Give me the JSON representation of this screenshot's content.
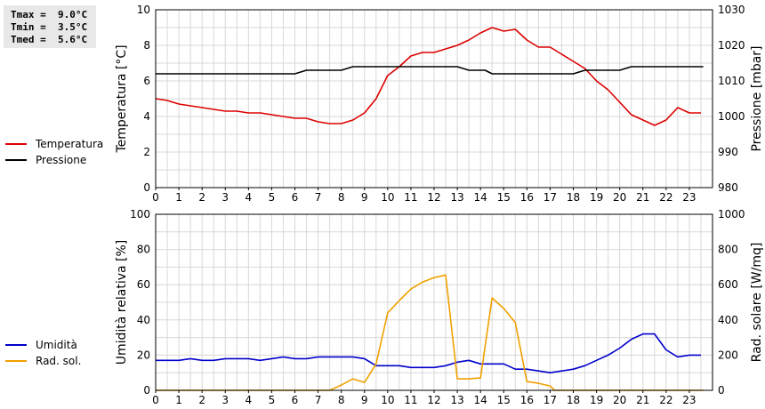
{
  "stats": {
    "tmax": "Tmax =  9.0°C",
    "tmin": "Tmin =  3.5°C",
    "tmed": "Tmed =  5.6°C"
  },
  "colors": {
    "temperature": "#dd0000",
    "pressure": "#000000",
    "humidity": "#0000cc",
    "radiation": "#f0a000",
    "grid": "#d8d8d8"
  },
  "chart_data": [
    {
      "type": "line",
      "xlabel": "",
      "ylabel": "Temperatura [°C]",
      "y2label": "Pressione [mbar]",
      "xlim": [
        0,
        24
      ],
      "ylim": [
        0,
        10
      ],
      "y2lim": [
        980,
        1030
      ],
      "xticks": [
        "0",
        "1",
        "2",
        "3",
        "4",
        "5",
        "6",
        "7",
        "8",
        "9",
        "10",
        "11",
        "12",
        "13",
        "14",
        "15",
        "16",
        "17",
        "18",
        "19",
        "20",
        "21",
        "22",
        "23"
      ],
      "yticks": [
        "0",
        "2",
        "4",
        "6",
        "8",
        "10"
      ],
      "y2ticks": [
        "980",
        "990",
        "1000",
        "1010",
        "1020",
        "1030"
      ],
      "grid": true,
      "legend": "left",
      "series": [
        {
          "name": "Temperatura",
          "axis": "left",
          "x": [
            0,
            0.5,
            1,
            1.5,
            2,
            2.5,
            3,
            3.5,
            4,
            4.5,
            5,
            5.5,
            6,
            6.5,
            7,
            7.5,
            8,
            8.5,
            9,
            9.5,
            10,
            10.5,
            11,
            11.5,
            12,
            12.5,
            13,
            13.5,
            14,
            14.5,
            15,
            15.5,
            16,
            16.5,
            17,
            17.5,
            18,
            18.5,
            19,
            19.5,
            20,
            20.5,
            21,
            21.5,
            22,
            22.5,
            23,
            23.5
          ],
          "values": [
            5.0,
            4.9,
            4.7,
            4.6,
            4.5,
            4.4,
            4.3,
            4.3,
            4.2,
            4.2,
            4.1,
            4.0,
            3.9,
            3.9,
            3.7,
            3.6,
            3.6,
            3.8,
            4.2,
            5.0,
            6.3,
            6.8,
            7.4,
            7.6,
            7.6,
            7.8,
            8.0,
            8.3,
            8.7,
            9.0,
            8.8,
            8.9,
            8.3,
            7.9,
            7.9,
            7.5,
            7.1,
            6.7,
            6.0,
            5.5,
            4.8,
            4.1,
            3.8,
            3.5,
            3.8,
            4.5,
            4.2,
            4.2
          ]
        },
        {
          "name": "Pressione",
          "axis": "right",
          "x": [
            0,
            6,
            6.5,
            8,
            8.5,
            13,
            13.5,
            14.2,
            14.5,
            18,
            18.5,
            20,
            20.5,
            23.6
          ],
          "values": [
            1012,
            1012,
            1013,
            1013,
            1014,
            1014,
            1013,
            1013,
            1012,
            1012,
            1013,
            1013,
            1014,
            1014
          ]
        }
      ]
    },
    {
      "type": "line",
      "xlabel": "",
      "ylabel": "Umidità relativa [%]",
      "y2label": "Rad. solare [W/mq]",
      "xlim": [
        0,
        24
      ],
      "ylim": [
        0,
        100
      ],
      "y2lim": [
        0,
        1000
      ],
      "xticks": [
        "0",
        "1",
        "2",
        "3",
        "4",
        "5",
        "6",
        "7",
        "8",
        "9",
        "10",
        "11",
        "12",
        "13",
        "14",
        "15",
        "16",
        "17",
        "18",
        "19",
        "20",
        "21",
        "22",
        "23"
      ],
      "yticks": [
        "0",
        "20",
        "40",
        "60",
        "80",
        "100"
      ],
      "y2ticks": [
        "0",
        "200",
        "400",
        "600",
        "800",
        "1000"
      ],
      "grid": true,
      "legend": "left",
      "series": [
        {
          "name": "Umidità",
          "axis": "left",
          "x": [
            0,
            0.5,
            1,
            1.5,
            2,
            2.5,
            3,
            3.5,
            4,
            4.5,
            5,
            5.5,
            6,
            6.5,
            7,
            7.5,
            8,
            8.5,
            9,
            9.5,
            10,
            10.5,
            11,
            11.5,
            12,
            12.5,
            13,
            13.5,
            14,
            14.5,
            15,
            15.5,
            16,
            16.5,
            17,
            17.5,
            18,
            18.5,
            19,
            19.5,
            20,
            20.5,
            21,
            21.5,
            22,
            22.5,
            23,
            23.5
          ],
          "values": [
            17,
            17,
            17,
            18,
            17,
            17,
            18,
            18,
            18,
            17,
            18,
            19,
            18,
            18,
            19,
            19,
            19,
            19,
            18,
            14,
            14,
            14,
            13,
            13,
            13,
            14,
            16,
            17,
            15,
            15,
            15,
            12,
            12,
            11,
            10,
            11,
            12,
            14,
            17,
            20,
            24,
            29,
            32,
            32,
            23,
            19,
            20,
            20
          ]
        },
        {
          "name": "Rad. sol.",
          "axis": "right",
          "x": [
            0,
            7.5,
            8,
            8.5,
            9,
            9.5,
            10,
            10.5,
            11,
            11.5,
            12,
            12.5,
            13,
            13.5,
            14,
            14.5,
            15,
            15.5,
            16,
            16.5,
            17,
            17.2,
            23.6
          ],
          "values": [
            0,
            0,
            30,
            65,
            45,
            150,
            440,
            510,
            575,
            615,
            640,
            655,
            65,
            65,
            70,
            525,
            465,
            385,
            50,
            40,
            25,
            0,
            0
          ]
        }
      ]
    }
  ]
}
